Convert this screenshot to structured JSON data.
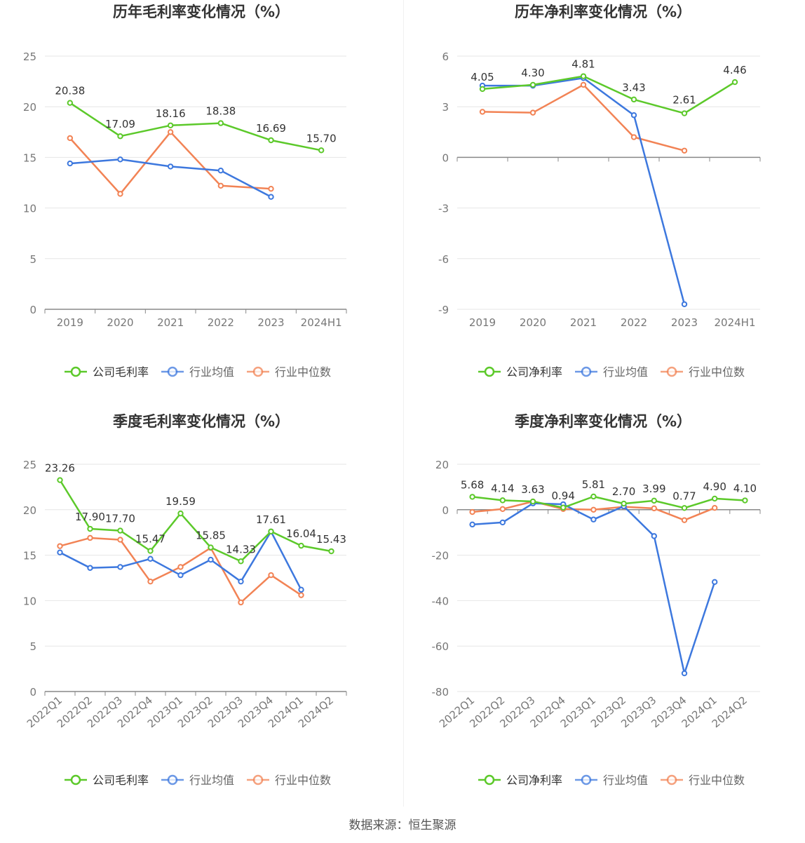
{
  "source": "数据来源：恒生聚源",
  "colors": {
    "company": "#5cc92a",
    "avg": "#3d78de",
    "median": "#f28355",
    "axis": "#888888",
    "grid": "#e6e6e6"
  },
  "chart_data": [
    {
      "type": "line",
      "title": "历年毛利率变化情况（%）",
      "categories": [
        "2019",
        "2020",
        "2021",
        "2022",
        "2023",
        "2024H1"
      ],
      "ylim": [
        0,
        25
      ],
      "yticks": [
        0,
        5,
        10,
        15,
        20,
        25
      ],
      "legend_position": "bottom",
      "grid": true,
      "series": [
        {
          "name": "公司毛利率",
          "values": [
            20.38,
            17.09,
            18.16,
            18.38,
            16.69,
            15.7
          ],
          "labels": [
            "20.38",
            "17.09",
            "18.16",
            "18.38",
            "16.69",
            "15.70"
          ]
        },
        {
          "name": "行业均值",
          "values": [
            14.4,
            14.8,
            14.1,
            13.7,
            11.1,
            null
          ]
        },
        {
          "name": "行业中位数",
          "values": [
            16.9,
            11.4,
            17.5,
            12.2,
            11.9,
            null
          ]
        }
      ]
    },
    {
      "type": "line",
      "title": "历年净利率变化情况（%）",
      "categories": [
        "2019",
        "2020",
        "2021",
        "2022",
        "2023",
        "2024H1"
      ],
      "ylim": [
        -9,
        6
      ],
      "yticks": [
        -9,
        -6,
        -3,
        0,
        3,
        6
      ],
      "legend_position": "bottom",
      "grid": true,
      "series": [
        {
          "name": "公司净利率",
          "values": [
            4.05,
            4.3,
            4.81,
            3.43,
            2.61,
            4.46
          ],
          "labels": [
            "4.05",
            "4.30",
            "4.81",
            "3.43",
            "2.61",
            "4.46"
          ]
        },
        {
          "name": "行业均值",
          "values": [
            4.25,
            4.25,
            4.7,
            2.5,
            -8.7,
            null
          ]
        },
        {
          "name": "行业中位数",
          "values": [
            2.7,
            2.65,
            4.3,
            1.2,
            0.4,
            null
          ]
        }
      ]
    },
    {
      "type": "line",
      "title": "季度毛利率变化情况（%）",
      "categories": [
        "2022Q1",
        "2022Q2",
        "2022Q3",
        "2022Q4",
        "2023Q1",
        "2023Q2",
        "2023Q3",
        "2023Q4",
        "2024Q1",
        "2024Q2"
      ],
      "ylim": [
        0,
        25
      ],
      "yticks": [
        0,
        5,
        10,
        15,
        20,
        25
      ],
      "legend_position": "bottom",
      "grid": true,
      "series": [
        {
          "name": "公司毛利率",
          "values": [
            23.26,
            17.9,
            17.7,
            15.47,
            19.59,
            15.85,
            14.33,
            17.61,
            16.04,
            15.43
          ],
          "labels": [
            "23.26",
            "17.90",
            "17.70",
            "15.47",
            "19.59",
            "15.85",
            "14.33",
            "17.61",
            "16.04",
            "15.43"
          ]
        },
        {
          "name": "行业均值",
          "values": [
            15.3,
            13.6,
            13.7,
            14.6,
            12.8,
            14.5,
            12.1,
            17.6,
            11.2,
            null
          ]
        },
        {
          "name": "行业中位数",
          "values": [
            16.0,
            16.9,
            16.7,
            12.1,
            13.7,
            15.8,
            9.8,
            12.8,
            10.6,
            null
          ]
        }
      ]
    },
    {
      "type": "line",
      "title": "季度净利率变化情况（%）",
      "categories": [
        "2022Q1",
        "2022Q2",
        "2022Q3",
        "2022Q4",
        "2023Q1",
        "2023Q2",
        "2023Q3",
        "2023Q4",
        "2024Q1",
        "2024Q2"
      ],
      "ylim": [
        -80,
        20
      ],
      "yticks": [
        -80,
        -60,
        -40,
        -20,
        0,
        20
      ],
      "legend_position": "bottom",
      "grid": true,
      "series": [
        {
          "name": "公司净利率",
          "values": [
            5.68,
            4.14,
            3.63,
            0.94,
            5.81,
            2.7,
            3.99,
            0.77,
            4.9,
            4.1
          ],
          "labels": [
            "5.68",
            "4.14",
            "3.63",
            "0.94",
            "5.81",
            "2.70",
            "3.99",
            "0.77",
            "4.90",
            "4.10"
          ]
        },
        {
          "name": "行业均值",
          "values": [
            -6.5,
            -5.6,
            2.8,
            2.4,
            -4.3,
            1.5,
            -11.6,
            -72.0,
            -31.8,
            null
          ]
        },
        {
          "name": "行业中位数",
          "values": [
            -1.0,
            0.3,
            3.6,
            0.3,
            0.0,
            1.3,
            0.6,
            -4.6,
            0.8,
            null
          ]
        }
      ]
    }
  ]
}
